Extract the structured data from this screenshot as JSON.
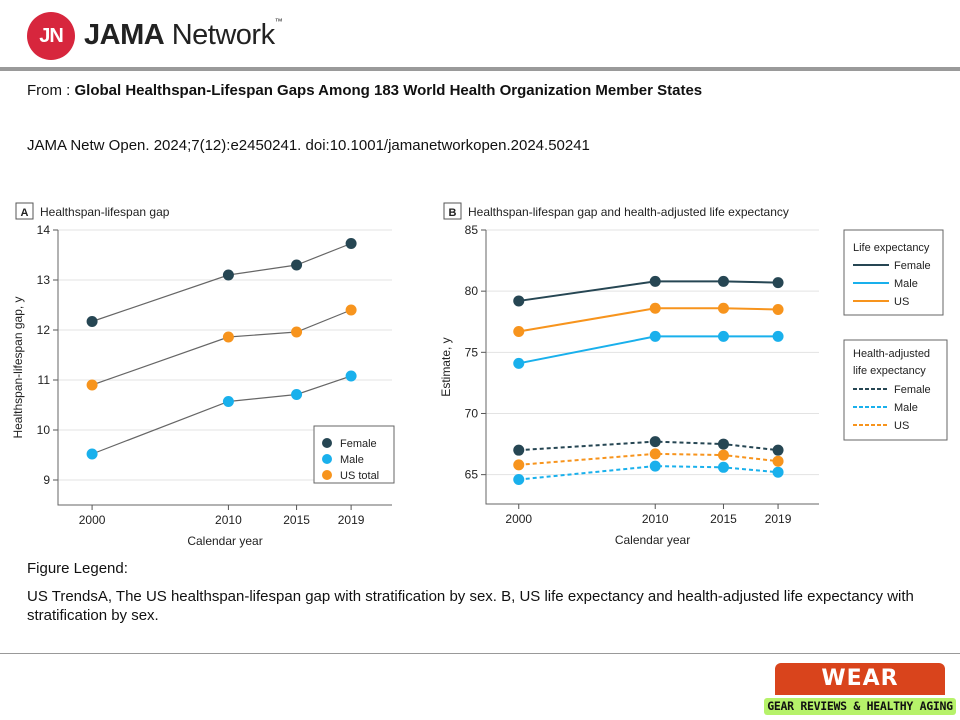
{
  "header": {
    "logo_mark": "JN",
    "brand_bold": "JAMA",
    "brand_rest": " Network",
    "brand_tm": "™"
  },
  "article": {
    "from_label": "From",
    "title": "Global Healthspan-Lifespan Gaps Among 183 World Health Organization Member States",
    "citation": "JAMA Netw Open. 2024;7(12):e2450241. doi:10.1001/jamanetworkopen.2024.50241"
  },
  "figure_legend": {
    "heading": "Figure Legend:",
    "text": "US TrendsA, The US healthspan-lifespan gap with stratification by sex. B, US life expectancy and health-adjusted life expectancy with stratification by sex."
  },
  "watermark": {
    "line1": "WEAR TESTED",
    "line2": "GEAR REVIEWS & HEALTHY AGING"
  },
  "colors": {
    "female": "#264653",
    "male": "#19b0ec",
    "us": "#f7941d"
  },
  "chart_data": [
    {
      "panel": "A",
      "type": "line",
      "title": "Healthspan-lifespan gap",
      "xlabel": "Calendar year",
      "ylabel": "Healthspan-lifespan gap, y",
      "x": [
        2000,
        2010,
        2015,
        2019
      ],
      "xticks": [
        "2000",
        "2010",
        "2015",
        "2019"
      ],
      "ylim": [
        8.5,
        14
      ],
      "yticks": [
        9,
        10,
        11,
        12,
        13,
        14
      ],
      "grid": true,
      "legend": "bottom-right",
      "series": [
        {
          "name": "Female",
          "color": "#264653",
          "values": [
            12.17,
            13.1,
            13.3,
            13.73
          ]
        },
        {
          "name": "Male",
          "color": "#19b0ec",
          "values": [
            9.52,
            10.57,
            10.71,
            11.08
          ]
        },
        {
          "name": "US total",
          "color": "#f7941d",
          "values": [
            10.9,
            11.86,
            11.96,
            12.4
          ]
        }
      ]
    },
    {
      "panel": "B",
      "type": "line",
      "title": "Healthspan-lifespan gap and health-adjusted life expectancy",
      "xlabel": "Calendar year",
      "ylabel": "Estimate, y",
      "x": [
        2000,
        2010,
        2015,
        2019
      ],
      "xticks": [
        "2000",
        "2010",
        "2015",
        "2019"
      ],
      "ylim": [
        62.6,
        85
      ],
      "yticks": [
        65,
        70,
        75,
        80,
        85
      ],
      "grid": true,
      "legend": "right",
      "legend_groups": [
        "Life expectancy",
        "Health-adjusted life expectancy"
      ],
      "series": [
        {
          "group": "Life expectancy",
          "name": "Female",
          "color": "#264653",
          "dashed": false,
          "values": [
            79.2,
            80.8,
            80.8,
            80.7
          ]
        },
        {
          "group": "Life expectancy",
          "name": "Male",
          "color": "#19b0ec",
          "dashed": false,
          "values": [
            74.1,
            76.3,
            76.3,
            76.3
          ]
        },
        {
          "group": "Life expectancy",
          "name": "US",
          "color": "#f7941d",
          "dashed": false,
          "values": [
            76.7,
            78.6,
            78.6,
            78.5
          ]
        },
        {
          "group": "Health-adjusted life expectancy",
          "name": "Female",
          "color": "#264653",
          "dashed": true,
          "values": [
            67.0,
            67.7,
            67.5,
            67.0
          ]
        },
        {
          "group": "Health-adjusted life expectancy",
          "name": "Male",
          "color": "#19b0ec",
          "dashed": true,
          "values": [
            64.6,
            65.7,
            65.6,
            65.2
          ]
        },
        {
          "group": "Health-adjusted life expectancy",
          "name": "US",
          "color": "#f7941d",
          "dashed": true,
          "values": [
            65.8,
            66.7,
            66.6,
            66.1
          ]
        }
      ]
    }
  ]
}
